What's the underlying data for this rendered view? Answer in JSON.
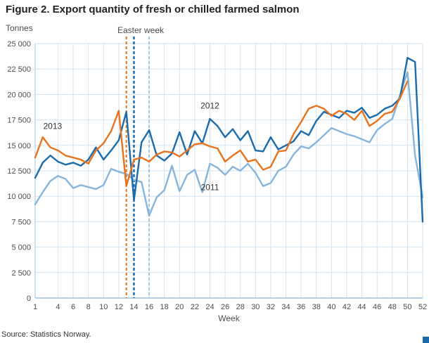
{
  "figure": {
    "title": "Figure 2. Export quantity of fresh or chilled farmed salmon",
    "y_unit_label": "Tonnes",
    "x_axis_label": "Week",
    "annotation": "Easter week",
    "source": "Source: Statistics Norway."
  },
  "colors": {
    "series_2013": "#e8731c",
    "series_2012": "#1a6bac",
    "series_2011": "#85b5dd",
    "grid": "#d3e3f0",
    "axis": "#9dc6e8",
    "tick_text": "#4d4d4d",
    "label_text": "#333333"
  },
  "chart_data": {
    "type": "line",
    "title": "Figure 2. Export quantity of fresh or chilled farmed salmon",
    "xlabel": "Week",
    "ylabel": "Tonnes",
    "xlim": [
      1,
      52
    ],
    "ylim": [
      0,
      25000
    ],
    "x_ticks": [
      1,
      4,
      6,
      8,
      10,
      12,
      14,
      16,
      18,
      20,
      22,
      24,
      26,
      28,
      30,
      32,
      34,
      36,
      38,
      40,
      42,
      44,
      46,
      48,
      50,
      52
    ],
    "y_ticks": [
      0,
      2500,
      5000,
      7500,
      10000,
      12500,
      15000,
      17500,
      20000,
      22500,
      25000
    ],
    "grid": true,
    "legend_position": "inline-labels",
    "series": [
      {
        "name": "2011",
        "color": "#85b5dd",
        "start_week": 1,
        "values": [
          9200,
          10400,
          11500,
          12000,
          11700,
          10800,
          11100,
          10900,
          10700,
          11100,
          12700,
          12400,
          12200,
          11600,
          11400,
          8100,
          9900,
          10600,
          13000,
          10500,
          12100,
          12600,
          10400,
          13200,
          12800,
          12100,
          12900,
          12500,
          13200,
          12300,
          11000,
          11300,
          12500,
          12900,
          14100,
          14900,
          14700,
          15300,
          16000,
          16700,
          16400,
          16100,
          15900,
          15600,
          15300,
          16500,
          17100,
          17600,
          19900,
          22200,
          14000,
          9900
        ]
      },
      {
        "name": "2012",
        "color": "#1a6bac",
        "start_week": 1,
        "values": [
          11800,
          13300,
          14000,
          13400,
          13100,
          13300,
          13000,
          13600,
          14800,
          13600,
          14500,
          15500,
          18300,
          9600,
          15300,
          16500,
          14000,
          13500,
          14200,
          16300,
          14100,
          16400,
          15200,
          17600,
          16900,
          15800,
          16600,
          15500,
          16400,
          14500,
          14400,
          15800,
          14600,
          15000,
          15400,
          16400,
          16000,
          17400,
          18300,
          18000,
          17700,
          18400,
          18200,
          18700,
          17700,
          18000,
          18600,
          18900,
          19600,
          23600,
          23200,
          7500
        ]
      },
      {
        "name": "2013",
        "color": "#e8731c",
        "start_week": 1,
        "values": [
          13800,
          15800,
          14800,
          14500,
          14000,
          13800,
          13600,
          13200,
          14500,
          15200,
          16400,
          18400,
          11000,
          13600,
          13800,
          13400,
          14100,
          14400,
          14300,
          13900,
          14500,
          15100,
          15200,
          14900,
          14700,
          13400,
          14000,
          14500,
          13400,
          13600,
          12600,
          12900,
          14400,
          14500,
          16100,
          17300,
          18600,
          18900,
          18600,
          17900,
          18400,
          18100,
          17500,
          18400,
          16900,
          17400,
          18100,
          18300,
          19600,
          21300
        ]
      }
    ],
    "easter_week_lines": [
      {
        "series": "2013",
        "week": 13,
        "color": "#e8731c",
        "width": 2,
        "dash": "4 3"
      },
      {
        "series": "2012",
        "week": 14,
        "color": "#1a6bac",
        "width": 2.5,
        "dash": "4 3"
      },
      {
        "series": "2011",
        "week": 16,
        "color": "#85b5dd",
        "width": 1.5,
        "dash": "4 3"
      }
    ],
    "series_labels": [
      {
        "text": "2013",
        "week": 3.3,
        "value": 16600
      },
      {
        "text": "2012",
        "week": 24,
        "value": 18600
      },
      {
        "text": "2011",
        "week": 24,
        "value": 10600
      }
    ],
    "annotation": {
      "text": "Easter week"
    }
  }
}
